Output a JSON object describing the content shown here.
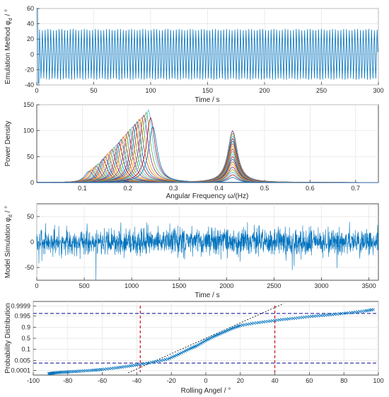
{
  "colors": {
    "signal": "#0072bd",
    "reference": "#c00000",
    "fit": "#000000",
    "quantile": "#1c1c9c",
    "marker": "#0072bd",
    "palette": [
      "#0072bd",
      "#d95319",
      "#edb120",
      "#7e2f8e",
      "#77ac30",
      "#4dbeee",
      "#a2142f"
    ]
  },
  "chart_data": [
    {
      "type": "line",
      "title": "",
      "xlabel": "Time / s",
      "ylabel": "Emulation Method φ_d / °",
      "ylabel_main": "Emulation Method φ",
      "ylabel_sub": "d",
      "ylabel_tail": " / °",
      "xlim": [
        0,
        300
      ],
      "ylim": [
        -40,
        60
      ],
      "xticks": [
        0,
        50,
        100,
        150,
        200,
        250,
        300
      ],
      "yticks": [
        -40,
        -20,
        0,
        20,
        40,
        60
      ],
      "grid": true,
      "series": [
        {
          "description": "periodic oscillation",
          "amplitude_deg": 33,
          "initial_peak_deg": 60,
          "period_s": 2.45
        }
      ]
    },
    {
      "type": "line",
      "title": "",
      "xlabel": "Angular Frequency  ω/(Hz)",
      "ylabel": "Power Density",
      "xlim": [
        0,
        0.75
      ],
      "ylim": [
        0,
        150
      ],
      "xticks": [
        0.1,
        0.2,
        0.3,
        0.4,
        0.5,
        0.6,
        0.7
      ],
      "yticks": [
        0,
        50,
        100,
        150
      ],
      "grid": true,
      "series": [
        {
          "family": "low-frequency peaks",
          "peak_x": [
            0.115,
            0.12,
            0.125,
            0.13,
            0.135,
            0.14,
            0.145,
            0.15,
            0.155,
            0.16,
            0.165,
            0.17,
            0.175,
            0.18,
            0.185,
            0.19,
            0.195,
            0.2,
            0.205,
            0.21,
            0.215,
            0.22,
            0.225,
            0.23,
            0.235,
            0.24,
            0.245,
            0.25,
            0.255
          ],
          "peak_y": [
            22,
            25,
            29,
            32,
            36,
            40,
            45,
            50,
            55,
            60,
            64,
            68,
            73,
            77,
            83,
            88,
            93,
            98,
            103,
            108,
            112,
            117,
            122,
            126,
            130,
            135,
            140,
            125,
            108
          ]
        },
        {
          "family": "peak near 0.43 Hz",
          "peak_x": 0.43,
          "peak_y": [
            100,
            95,
            90,
            85,
            80,
            75,
            70,
            65,
            60,
            55,
            50,
            45,
            40,
            35,
            30,
            25,
            20,
            15,
            10
          ]
        }
      ]
    },
    {
      "type": "line",
      "title": "",
      "xlabel": "Time / s",
      "ylabel": "Model Simulation φ_d / °",
      "ylabel_main": "Model Simulation φ",
      "ylabel_sub": "d",
      "ylabel_tail": " / °",
      "xlim": [
        0,
        3600
      ],
      "ylim": [
        -75,
        75
      ],
      "xticks": [
        0,
        500,
        1000,
        1500,
        2000,
        2500,
        3000,
        3500
      ],
      "yticks": [
        -50,
        0,
        50
      ],
      "grid": true,
      "series": [
        {
          "description": "random rolling signal",
          "typical_abs_deg": 25,
          "max_abs_deg": 75
        }
      ]
    },
    {
      "type": "scatter",
      "title": "",
      "xlabel": "Rolling Angel / °",
      "ylabel": "Probability Distribution",
      "xlim": [
        -100,
        100
      ],
      "xticks": [
        -100,
        -80,
        -60,
        -40,
        -20,
        0,
        20,
        40,
        60,
        80,
        100
      ],
      "yscale": "normal-probability",
      "yticks": [
        0.0001,
        0.005,
        0.1,
        0.5,
        0.9,
        0.995,
        0.9999
      ],
      "ytick_labels": [
        "0.0001",
        "0.005",
        "0.1",
        "0.5",
        "0.9",
        "0.995",
        "0.9999"
      ],
      "grid": true,
      "series": [
        {
          "description": "empirical quantiles (x markers)",
          "x": [
            -91,
            -88,
            -84,
            -79,
            -73,
            -66,
            -60,
            -52,
            -45,
            -38,
            -30,
            -22,
            -16,
            -10,
            -5,
            0,
            5,
            10,
            15,
            20,
            28,
            36,
            44,
            52,
            60,
            68,
            76,
            84,
            92,
            98
          ],
          "p": [
            2e-05,
            3e-05,
            4e-05,
            5e-05,
            7e-05,
            0.0001,
            0.00015,
            0.0003,
            0.0006,
            0.0012,
            0.003,
            0.008,
            0.03,
            0.1,
            0.2,
            0.4,
            0.6,
            0.75,
            0.87,
            0.93,
            0.96,
            0.975,
            0.985,
            0.99,
            0.994,
            0.996,
            0.9975,
            0.9985,
            0.9992,
            0.9996
          ]
        },
        {
          "description": "reference normal line",
          "x": [
            -45,
            45
          ],
          "p": [
            3e-05,
            0.99997
          ]
        },
        {
          "description": "vertical reference lines",
          "x": [
            -38,
            40
          ]
        },
        {
          "description": "horizontal reference levels",
          "p": [
            0.002,
            0.998
          ]
        }
      ]
    }
  ]
}
